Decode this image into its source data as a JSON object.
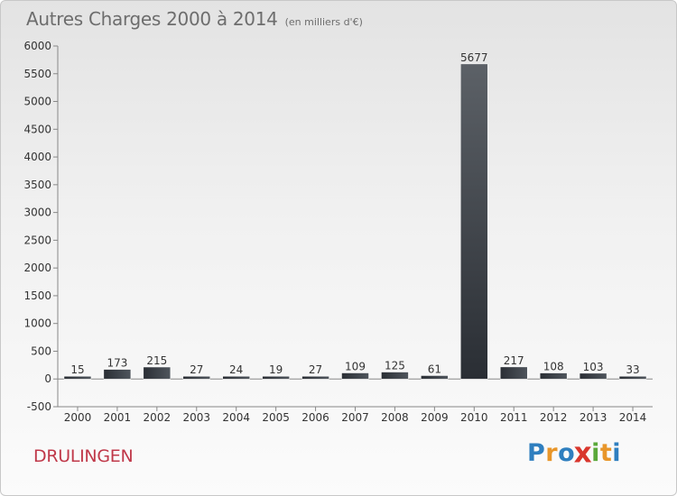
{
  "header": {
    "title": "Autres Charges 2000 à 2014",
    "subtitle": "(en milliers d'€)"
  },
  "footer": {
    "place": "DRULINGEN",
    "logo_letters": [
      "P",
      "r",
      "o",
      "x",
      "i",
      "t",
      "i"
    ],
    "logo_colors": [
      "#2f7fbf",
      "#e8962a",
      "#2f7fbf",
      "#d9362d",
      "#5aa83a",
      "#e8962a",
      "#2f7fbf"
    ]
  },
  "chart_data": {
    "type": "bar",
    "title": "Autres Charges 2000 à 2014",
    "subtitle": "(en milliers d'€)",
    "categories": [
      "2000",
      "2001",
      "2002",
      "2003",
      "2004",
      "2005",
      "2006",
      "2007",
      "2008",
      "2009",
      "2010",
      "2011",
      "2012",
      "2013",
      "2014"
    ],
    "values": [
      15,
      173,
      215,
      27,
      24,
      19,
      27,
      109,
      125,
      61,
      5677,
      217,
      108,
      103,
      33
    ],
    "data_labels": [
      "15",
      "173",
      "215",
      "27",
      "24",
      "19",
      "27",
      "109",
      "125",
      "61",
      "5677",
      "217",
      "108",
      "103",
      "33"
    ],
    "yticks": [
      "-500",
      "0",
      "500",
      "1000",
      "1500",
      "2000",
      "2500",
      "3000",
      "3500",
      "4000",
      "4500",
      "5000",
      "5500",
      "6000"
    ],
    "ylim": [
      -500,
      6000
    ],
    "grid": false,
    "bar_color": "#3b4047",
    "xlabel": "",
    "ylabel": ""
  }
}
